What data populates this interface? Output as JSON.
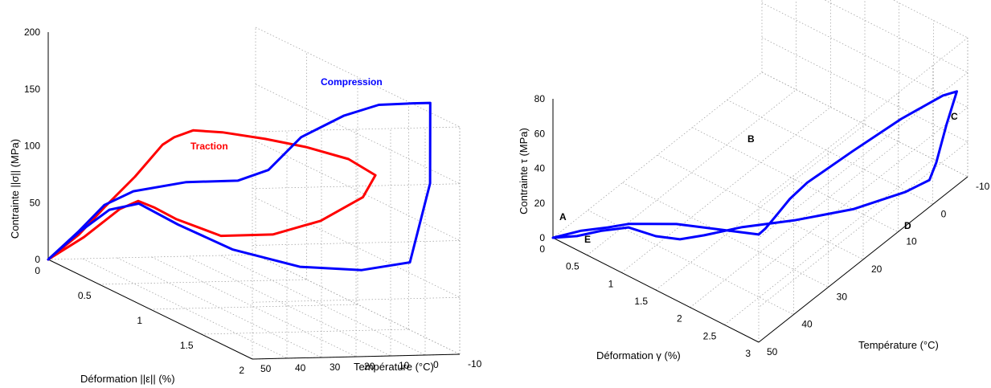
{
  "chart_data": [
    {
      "type": "line3d",
      "xlabel": "Température (°C)",
      "ylabel": "Déformation ||ε|| (%)",
      "zlabel": "Contrainte ||σ|| (MPa)",
      "x_ticks": [
        "-10",
        "0",
        "10",
        "20",
        "30",
        "40",
        "50"
      ],
      "y_ticks": [
        "0",
        "0.5",
        "1",
        "1.5",
        "2"
      ],
      "z_ticks": [
        "0",
        "50",
        "100",
        "150",
        "200"
      ],
      "xlim": [
        -10,
        50
      ],
      "ylim": [
        0,
        2
      ],
      "zlim": [
        0,
        200
      ],
      "grid": true,
      "series": [
        {
          "name": "Traction",
          "color": "#ff0000",
          "points": [
            [
              50,
              0,
              0
            ],
            [
              50,
              0.3,
              35
            ],
            [
              50,
              0.55,
              70
            ],
            [
              50,
              0.85,
              110
            ],
            [
              50,
              1.12,
              150
            ],
            [
              49,
              1.2,
              160
            ],
            [
              45,
              1.25,
              168
            ],
            [
              38,
              1.3,
              168
            ],
            [
              28,
              1.38,
              165
            ],
            [
              18,
              1.45,
              160
            ],
            [
              8,
              1.52,
              152
            ],
            [
              2,
              1.58,
              140
            ],
            [
              5,
              1.56,
              120
            ],
            [
              14,
              1.45,
              95
            ],
            [
              24,
              1.32,
              78
            ],
            [
              34,
              1.15,
              70
            ],
            [
              42,
              0.98,
              78
            ],
            [
              46,
              0.9,
              85
            ],
            [
              50,
              0.88,
              90
            ],
            [
              50,
              0.7,
              75
            ],
            [
              50,
              0.35,
              35
            ],
            [
              50,
              0,
              0
            ]
          ]
        },
        {
          "name": "Compression",
          "color": "#0000ff",
          "points": [
            [
              50,
              0,
              0
            ],
            [
              50,
              0.3,
              38
            ],
            [
              50,
              0.55,
              72
            ],
            [
              49,
              0.8,
              95
            ],
            [
              44,
              1.15,
              118
            ],
            [
              38,
              1.45,
              132
            ],
            [
              35,
              1.65,
              150
            ],
            [
              30,
              1.8,
              185
            ],
            [
              22,
              1.95,
              210
            ],
            [
              14,
              2.02,
              222
            ],
            [
              5,
              2.05,
              224
            ],
            [
              0,
              2.05,
              224
            ],
            [
              -2,
              1.98,
              150
            ],
            [
              0,
              1.85,
              75
            ],
            [
              8,
              1.65,
              60
            ],
            [
              20,
              1.45,
              55
            ],
            [
              32,
              1.2,
              60
            ],
            [
              42,
              1.0,
              74
            ],
            [
              48,
              0.82,
              85
            ],
            [
              50,
              0.6,
              70
            ],
            [
              50,
              0.3,
              37
            ],
            [
              50,
              0,
              0
            ]
          ]
        }
      ],
      "annotations": [
        {
          "text": "Traction",
          "color": "#ff0000"
        },
        {
          "text": "Compression",
          "color": "#0000ff"
        }
      ]
    },
    {
      "type": "line3d",
      "xlabel": "Température (°C)",
      "ylabel": "Déformation γ (%)",
      "zlabel": "Contrainte τ (MPa)",
      "x_ticks": [
        "-10",
        "0",
        "10",
        "20",
        "30",
        "40",
        "50"
      ],
      "y_ticks": [
        "0",
        "0.5",
        "1",
        "1.5",
        "2",
        "2.5",
        "3"
      ],
      "z_ticks": [
        "0",
        "20",
        "40",
        "60",
        "80"
      ],
      "xlim": [
        -10,
        50
      ],
      "ylim": [
        0,
        3
      ],
      "zlim": [
        0,
        80
      ],
      "grid": true,
      "series": [
        {
          "name": "",
          "color": "#0000ff",
          "points": [
            [
              50,
              0,
              0
            ],
            [
              50,
              0.4,
              12
            ],
            [
              50,
              0.8,
              22
            ],
            [
              50,
              1.1,
              30
            ],
            [
              50,
              1.4,
              36
            ],
            [
              50,
              1.8,
              44
            ],
            [
              50,
              2.4,
              53
            ],
            [
              50,
              3.0,
              62
            ],
            [
              49,
              3.05,
              65
            ],
            [
              47,
              3.1,
              70
            ],
            [
              44,
              3.15,
              76
            ],
            [
              40,
              3.2,
              80
            ],
            [
              28,
              3.25,
              80
            ],
            [
              15,
              3.3,
              79
            ],
            [
              4,
              3.35,
              76
            ],
            [
              0,
              3.35,
              72
            ],
            [
              0,
              3.2,
              50
            ],
            [
              0,
              3.05,
              25
            ],
            [
              0,
              2.95,
              13
            ],
            [
              5,
              2.85,
              12
            ],
            [
              15,
              2.6,
              13
            ],
            [
              26,
              2.3,
              18
            ],
            [
              36,
              2.05,
              25
            ],
            [
              44,
              1.9,
              30
            ],
            [
              48,
              1.75,
              31
            ],
            [
              50,
              1.5,
              31
            ],
            [
              50,
              1.1,
              28
            ],
            [
              50,
              0.7,
              18
            ],
            [
              50,
              0.35,
              8
            ],
            [
              50,
              0,
              0
            ]
          ]
        }
      ],
      "annotations": [
        {
          "text": "A"
        },
        {
          "text": "B"
        },
        {
          "text": "C"
        },
        {
          "text": "D"
        },
        {
          "text": "E"
        }
      ]
    }
  ]
}
